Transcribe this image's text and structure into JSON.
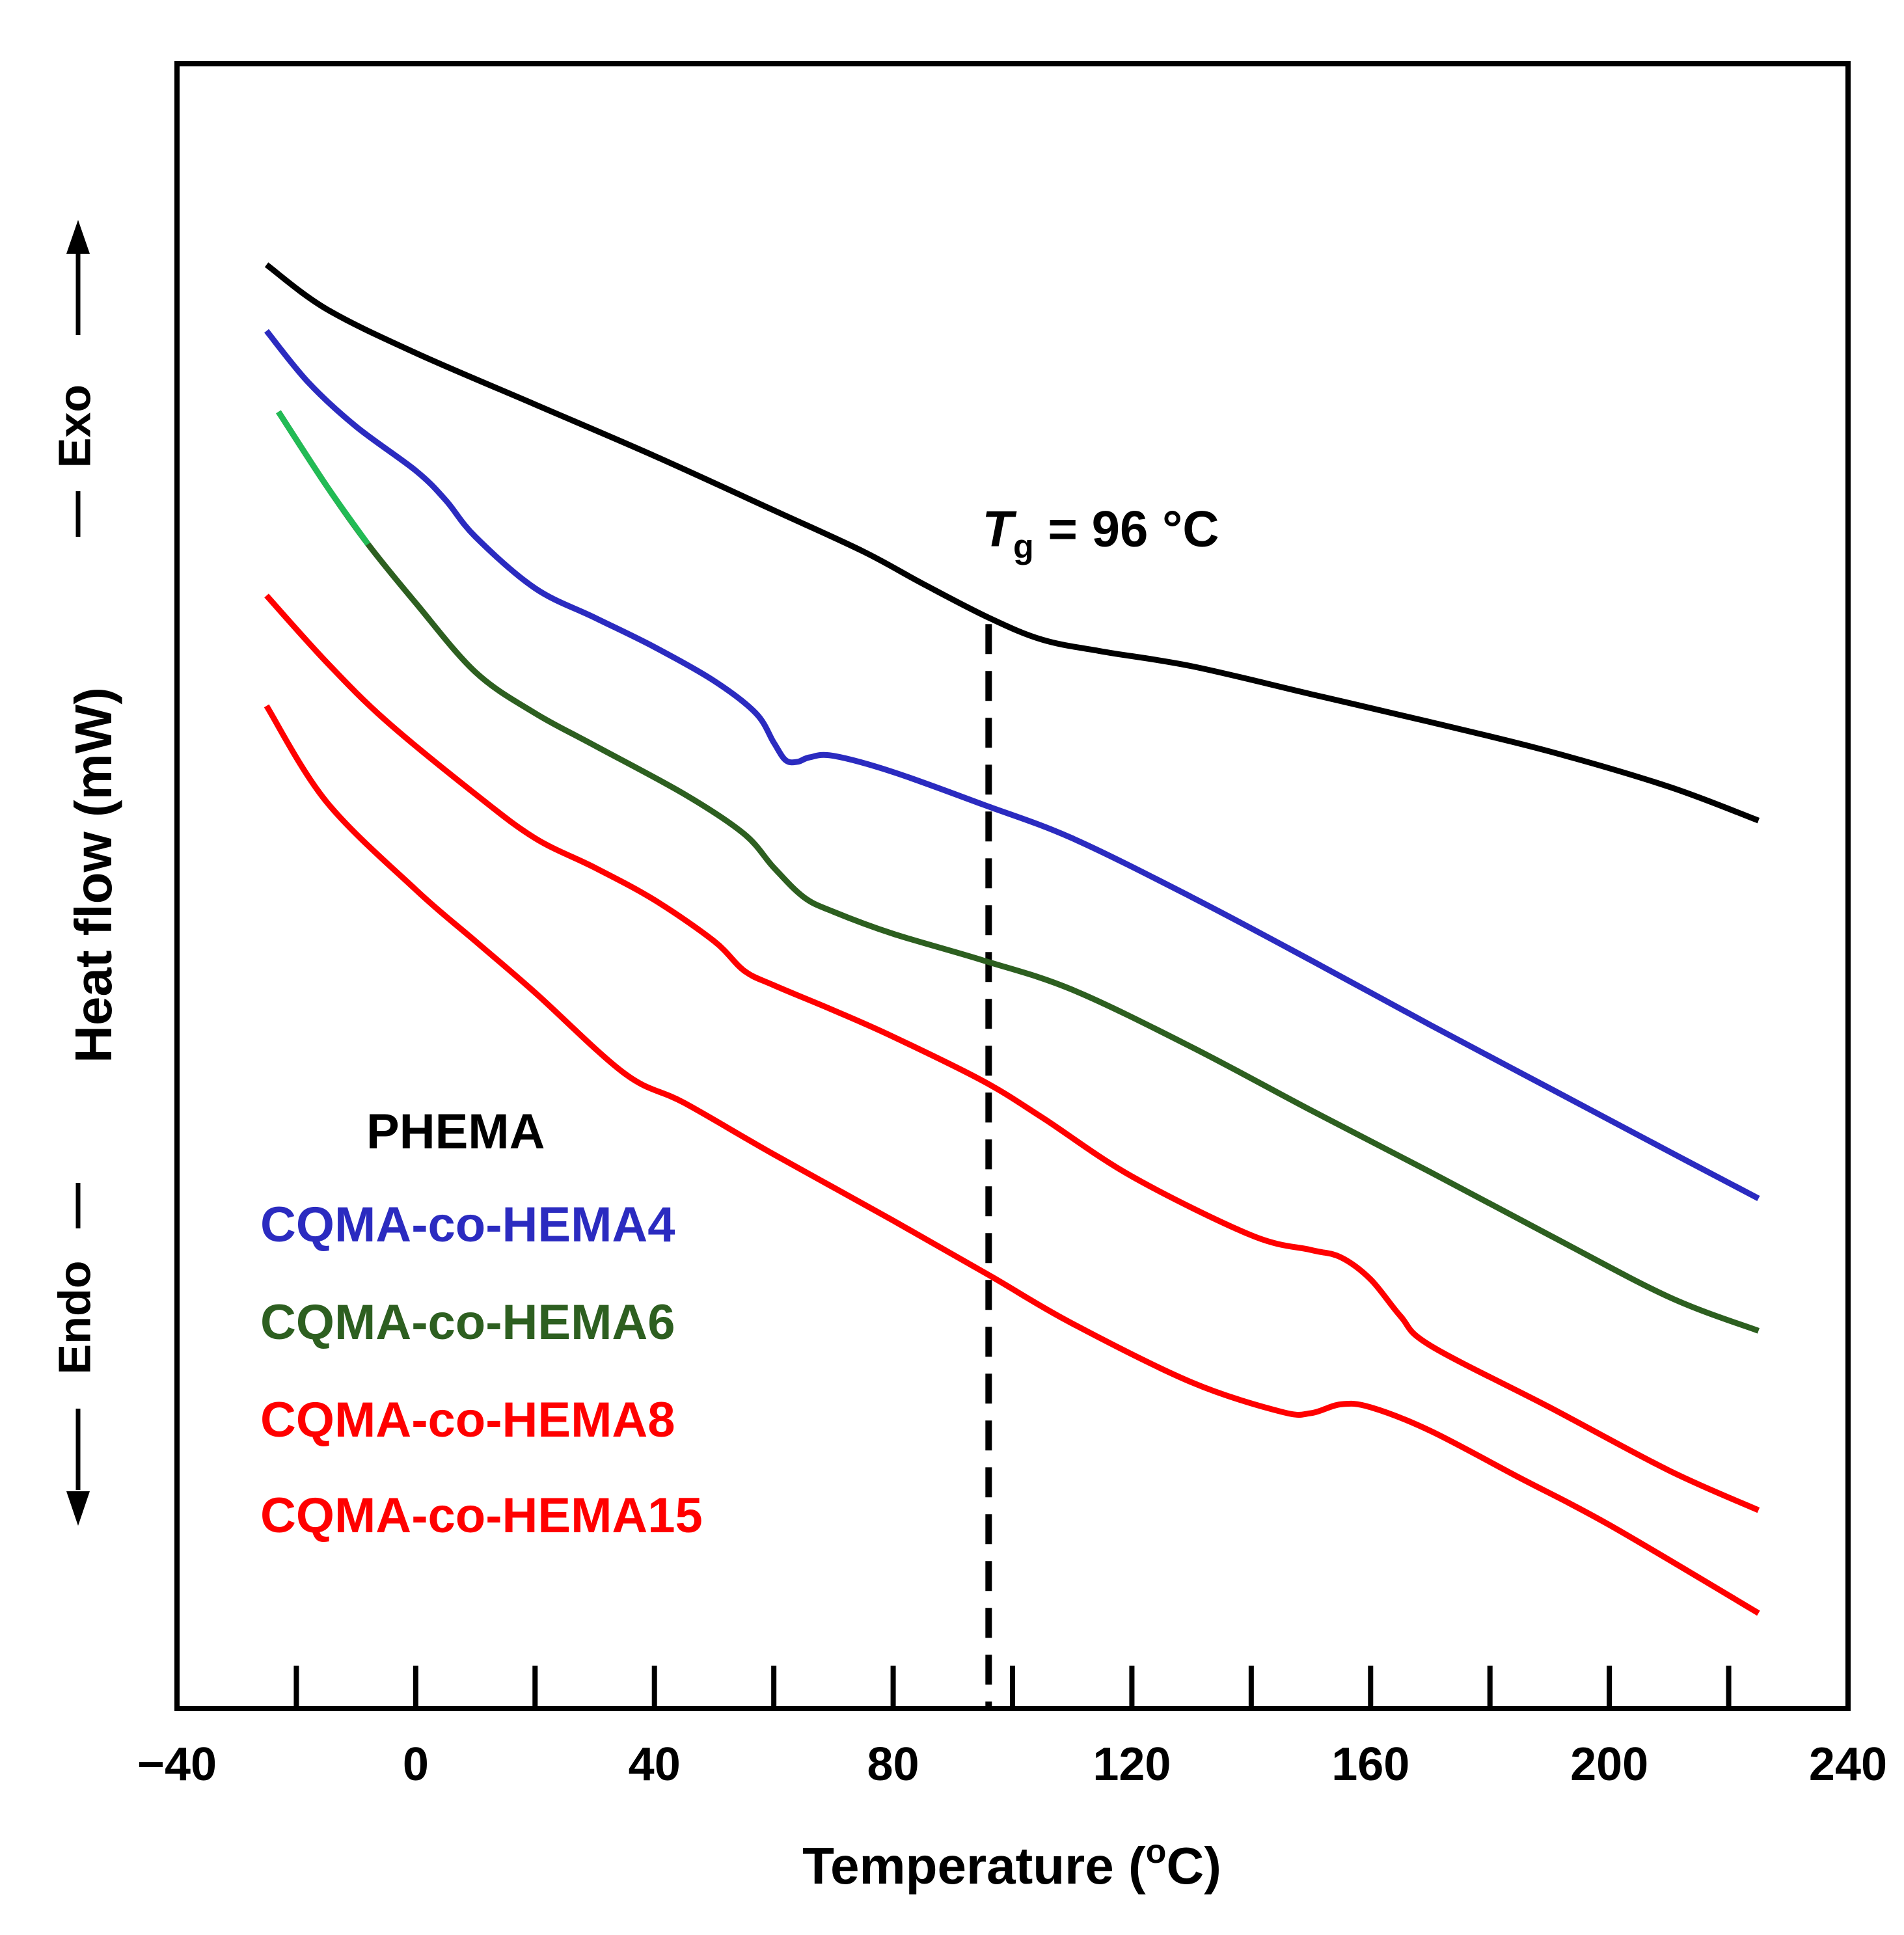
{
  "chart_data": {
    "type": "line",
    "title": "",
    "xlabel": "Temperature (",
    "xlabel_sup": "o",
    "xlabel_end": "C)",
    "ylabel": "Heat flow (mW)",
    "exo_label": "Exo",
    "endo_label": "Endo",
    "xlim": [
      -40,
      240
    ],
    "ylim": [
      0,
      100
    ],
    "xticks": [
      -40,
      0,
      40,
      80,
      120,
      160,
      200,
      240
    ],
    "xtick_labels": [
      "−40",
      "0",
      "40",
      "80",
      "120",
      "160",
      "200",
      "240"
    ],
    "minor_ticks": [
      -20,
      0,
      20,
      40,
      60,
      80,
      100,
      120,
      140,
      160,
      180,
      200,
      220
    ],
    "annotation": {
      "symbol": "T",
      "subscript": "g",
      "text": " = 96 °C",
      "x": 96
    },
    "grid": false,
    "legend_placement": "lower-left",
    "series": [
      {
        "name": "PHEMA",
        "color": "#000000",
        "x": [
          -25,
          -15,
          0,
          20,
          40,
          60,
          75,
          85,
          96,
          105,
          115,
          130,
          150,
          170,
          190,
          210,
          225
        ],
        "y": [
          93.5,
          90.5,
          87.5,
          84.0,
          80.5,
          76.8,
          74.0,
          71.8,
          69.5,
          68.0,
          67.2,
          66.2,
          64.3,
          62.4,
          60.4,
          58.0,
          55.7
        ]
      },
      {
        "name": "CQMA-co-HEMA4",
        "color": "#2B2BC0",
        "x": [
          -25,
          -18,
          -10,
          0,
          5,
          10,
          20,
          30,
          40,
          50,
          57,
          60,
          62,
          64,
          66,
          70,
          80,
          95,
          110,
          130,
          150,
          170,
          190,
          210,
          225
        ],
        "y": [
          89.0,
          85.5,
          82.5,
          79.5,
          77.5,
          75.0,
          71.5,
          69.5,
          67.5,
          65.2,
          63.0,
          61.0,
          59.8,
          59.7,
          60.0,
          60.1,
          59.0,
          56.8,
          54.5,
          50.5,
          46.2,
          41.8,
          37.5,
          33.2,
          30.0
        ]
      },
      {
        "name": "CQMA-co-HEMA6",
        "color": "#2D5F20",
        "color_start": "#22BB55",
        "x": [
          -23,
          -15,
          -8,
          0,
          10,
          20,
          30,
          45,
          55,
          60,
          65,
          70,
          80,
          95,
          110,
          130,
          150,
          170,
          190,
          210,
          225
        ],
        "y": [
          83.5,
          78.5,
          74.5,
          70.5,
          65.8,
          63.0,
          60.8,
          57.5,
          54.8,
          52.5,
          50.5,
          49.5,
          48.0,
          46.2,
          44.2,
          40.3,
          36.0,
          31.8,
          27.5,
          23.3,
          21.0
        ]
      },
      {
        "name": "CQMA-co-HEMA8",
        "color": "#FF0000",
        "x": [
          -25,
          -15,
          -5,
          10,
          20,
          30,
          40,
          50,
          55,
          60,
          70,
          80,
          95,
          105,
          120,
          140,
          150,
          155,
          160,
          165,
          170,
          190,
          210,
          225
        ],
        "y": [
          71.0,
          66.5,
          62.5,
          57.5,
          54.5,
          52.5,
          50.3,
          47.5,
          45.5,
          44.5,
          42.8,
          41.0,
          38.0,
          35.5,
          31.5,
          27.5,
          26.5,
          26.0,
          24.5,
          22.0,
          20.0,
          15.8,
          11.5,
          8.8
        ]
      },
      {
        "name": "CQMA-co-HEMA15",
        "color": "#FF0000",
        "x": [
          -25,
          -15,
          0,
          10,
          20,
          35,
          45,
          60,
          80,
          96,
          110,
          130,
          145,
          150,
          155,
          160,
          170,
          185,
          200,
          225
        ],
        "y": [
          63.5,
          57.0,
          51.0,
          47.5,
          44.0,
          38.5,
          36.5,
          33.0,
          28.5,
          24.8,
          21.5,
          17.5,
          15.5,
          15.4,
          16.0,
          15.8,
          14.2,
          11.0,
          7.8,
          1.8
        ]
      }
    ]
  }
}
